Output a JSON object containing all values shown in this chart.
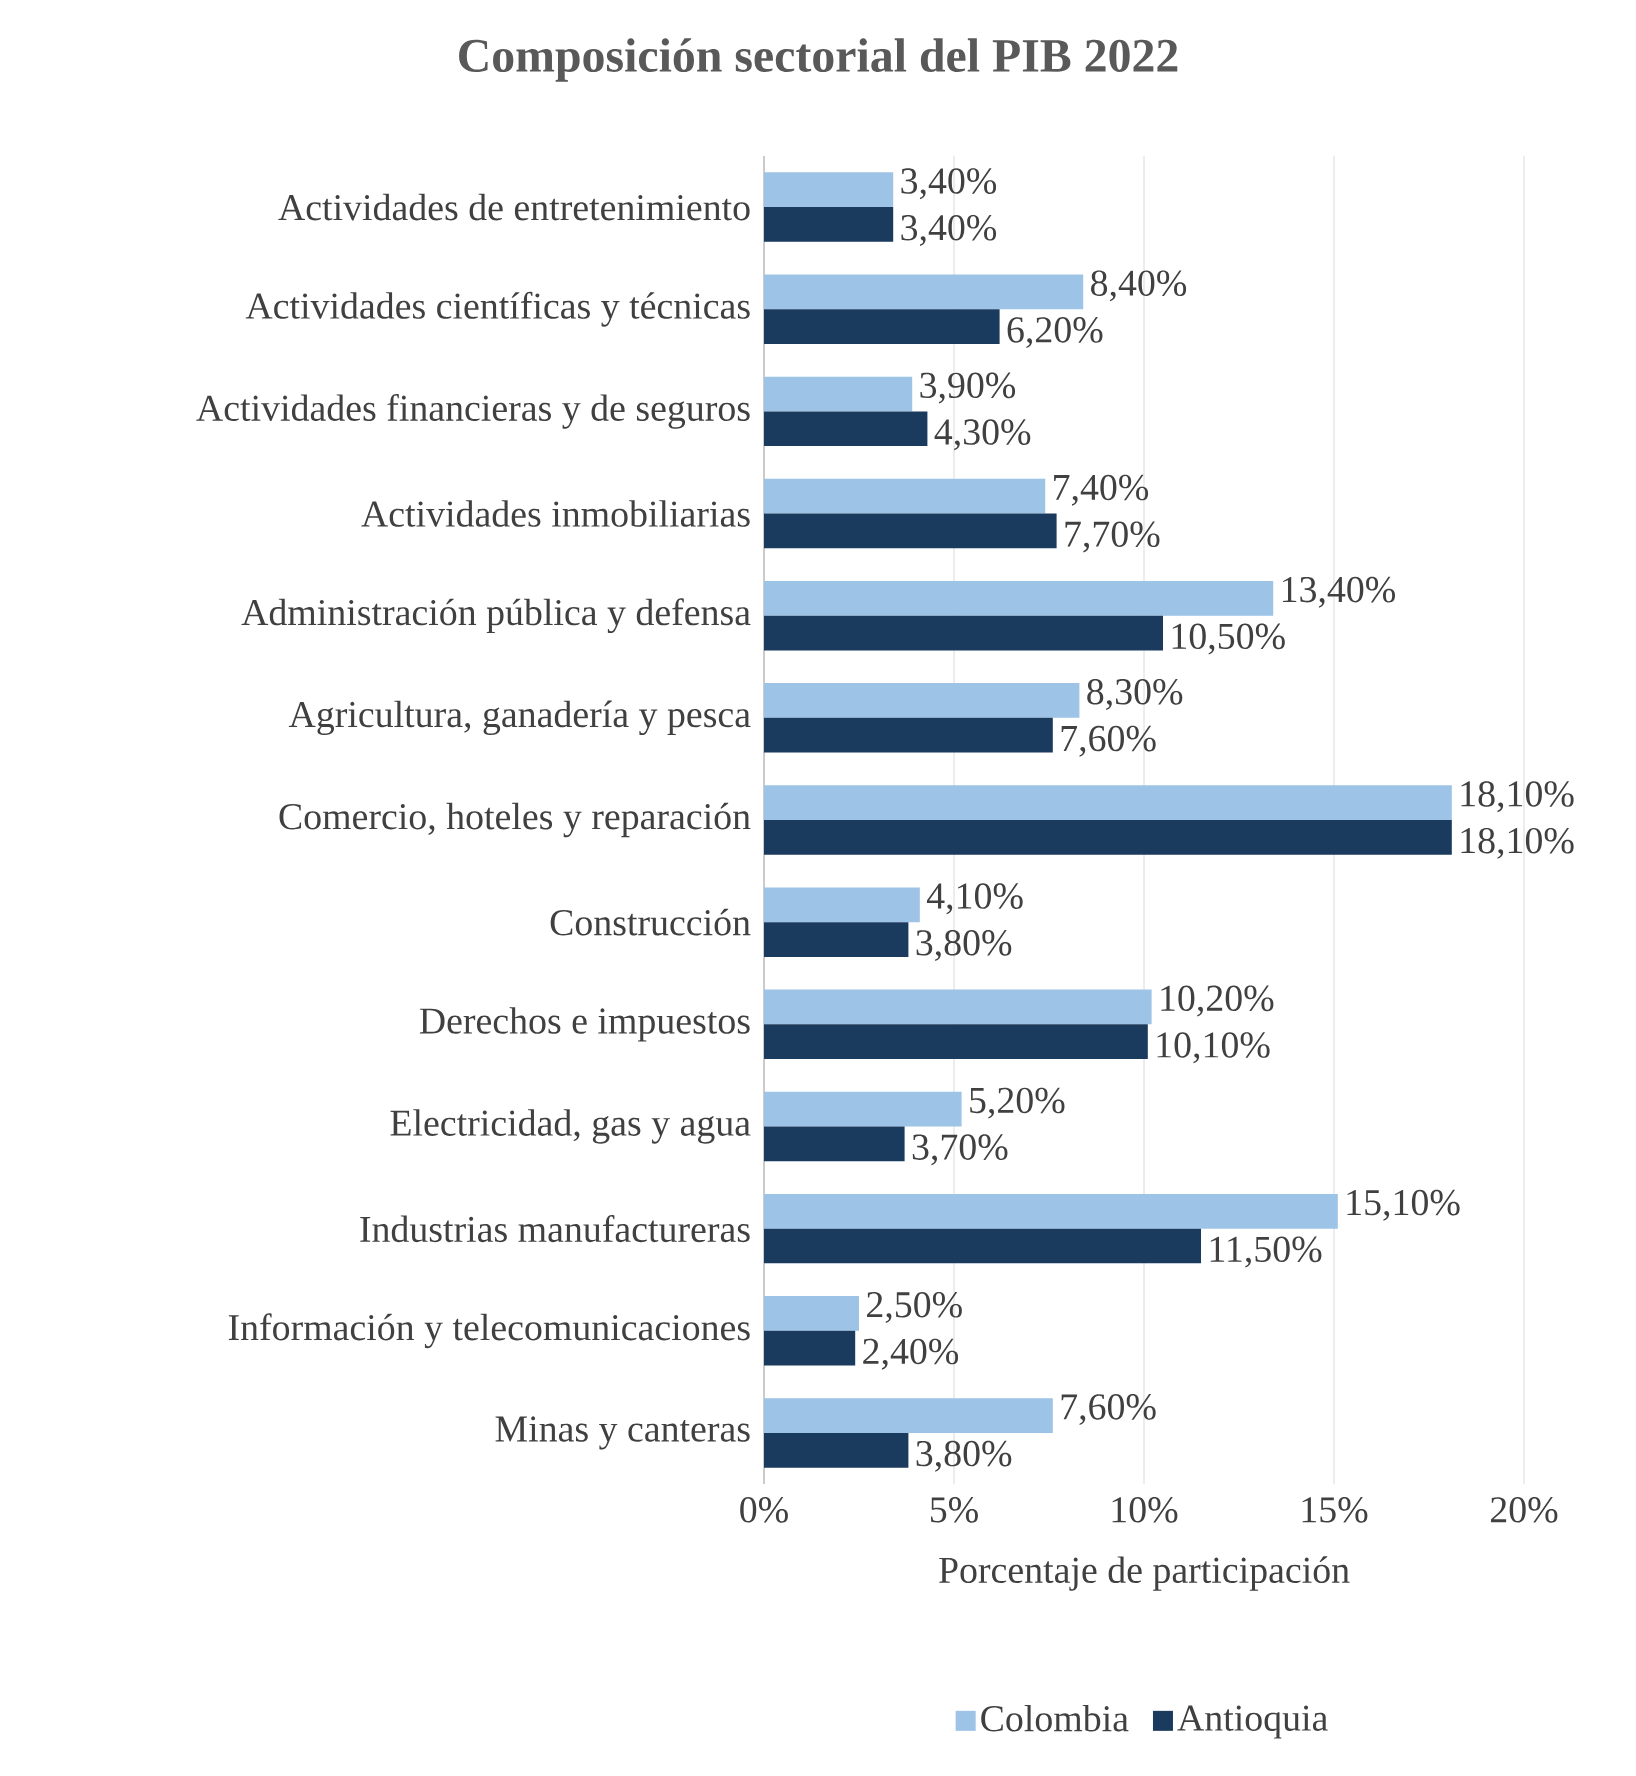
{
  "chart_data": {
    "type": "bar",
    "orientation": "horizontal",
    "title": "Composición sectorial del PIB 2022",
    "xlabel": "Porcentaje de participación",
    "categories": [
      "Actividades de entretenimiento",
      "Actividades científicas y técnicas",
      "Actividades financieras y de seguros",
      "Actividades inmobiliarias",
      "Administración pública y defensa",
      "Agricultura, ganadería y pesca",
      "Comercio, hoteles y reparación",
      "Construcción",
      "Derechos e impuestos",
      "Electricidad, gas y agua",
      "Industrias manufactureras",
      "Información y telecomunicaciones",
      "Minas y canteras"
    ],
    "series": [
      {
        "name": "Colombia",
        "color": "#9dc3e6",
        "values": [
          3.4,
          8.4,
          3.9,
          7.4,
          13.4,
          8.3,
          18.1,
          4.1,
          10.2,
          5.2,
          15.1,
          2.5,
          7.6
        ],
        "value_labels": [
          "3,40%",
          "8,40%",
          "3,90%",
          "7,40%",
          "13,40%",
          "8,30%",
          "18,10%",
          "4,10%",
          "10,20%",
          "5,20%",
          "15,10%",
          "2,50%",
          "7,60%"
        ]
      },
      {
        "name": "Antioquia",
        "color": "#1a3a5e",
        "values": [
          3.4,
          6.2,
          4.3,
          7.7,
          10.5,
          7.6,
          18.1,
          3.8,
          10.1,
          3.7,
          11.5,
          2.4,
          3.8
        ],
        "value_labels": [
          "3,40%",
          "6,20%",
          "4,30%",
          "7,70%",
          "10,50%",
          "7,60%",
          "18,10%",
          "3,80%",
          "10,10%",
          "3,70%",
          "11,50%",
          "2,40%",
          "3,80%"
        ]
      }
    ],
    "xlim": [
      0,
      20
    ],
    "xticks": [
      {
        "value": 0,
        "label": "0%"
      },
      {
        "value": 5,
        "label": "5%"
      },
      {
        "value": 10,
        "label": "10%"
      },
      {
        "value": 15,
        "label": "15%"
      },
      {
        "value": 20,
        "label": "20%"
      }
    ],
    "grid": "x",
    "legend": "bottom"
  }
}
